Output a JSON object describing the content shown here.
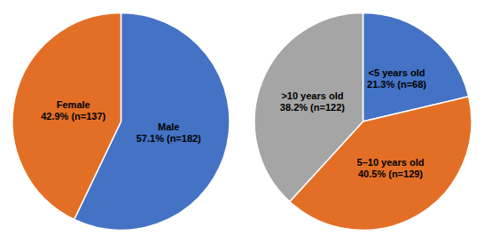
{
  "chart_data": [
    {
      "type": "pie",
      "categories": [
        "Male\n57.1% (n=182)",
        "Female\n42.9% (n=137)"
      ],
      "values": [
        57.1,
        42.9
      ],
      "colors": [
        "#4472c4",
        "#e36f26"
      ]
    },
    {
      "type": "pie",
      "categories": [
        "<5 years old\n21.3% (n=68)",
        "5–10 years old\n40.5% (n=129)",
        ">10 years old\n38.2% (n=122)"
      ],
      "values": [
        21.3,
        40.5,
        38.2
      ],
      "colors": [
        "#4472c4",
        "#e36f26",
        "#a5a5a5"
      ]
    }
  ]
}
